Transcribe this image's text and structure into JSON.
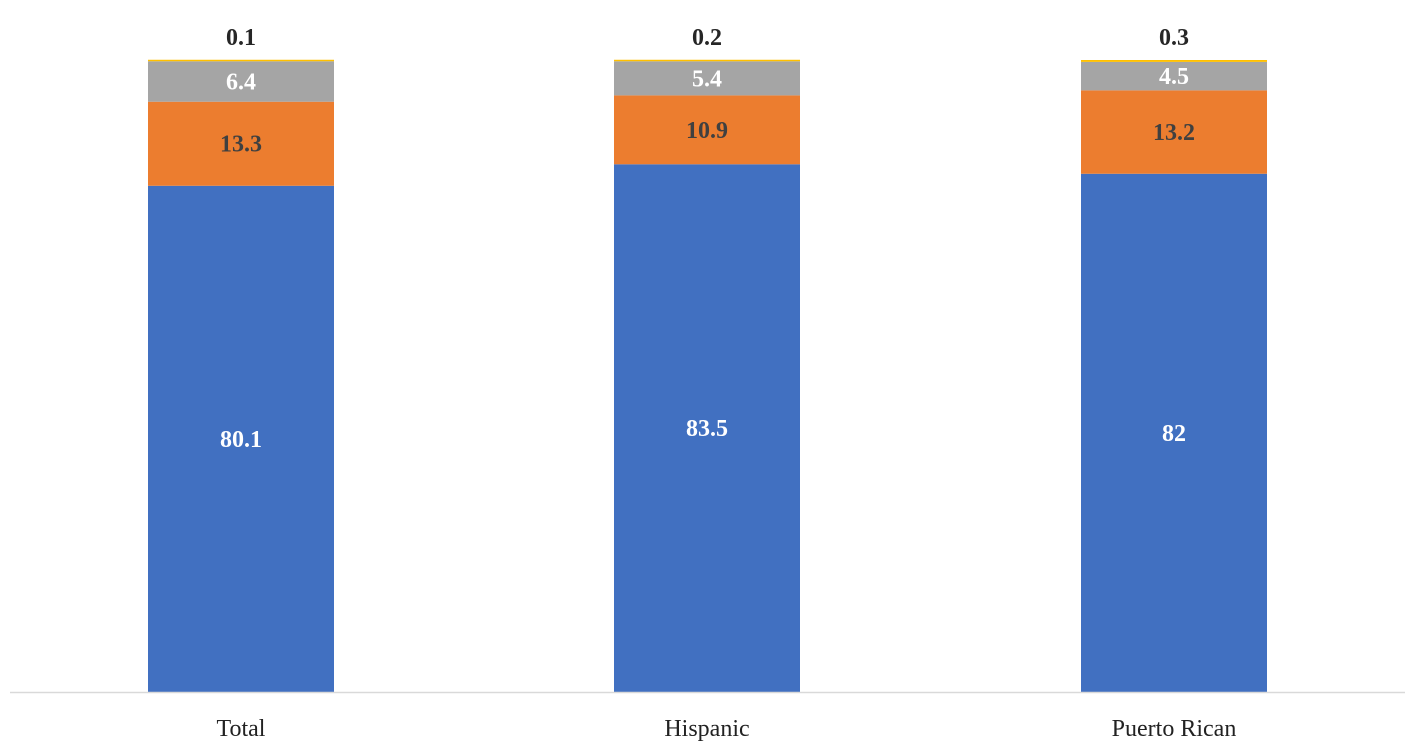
{
  "chart_data": {
    "type": "bar",
    "stacked": true,
    "categories": [
      "Total",
      "Hispanic",
      "Puerto Rican"
    ],
    "series": [
      {
        "values": [
          80.1,
          83.5,
          82
        ],
        "color": "#4170C1",
        "label_color": "#ffffff"
      },
      {
        "values": [
          13.3,
          10.9,
          13.2
        ],
        "color": "#EC7D2F",
        "label_color": "#404040"
      },
      {
        "values": [
          6.4,
          5.4,
          4.5
        ],
        "color": "#A5A5A5",
        "label_color": "#ffffff"
      },
      {
        "values": [
          0.1,
          0.2,
          0.3
        ],
        "color": "#FFC000",
        "label_color": "#262626",
        "label_outside": true
      }
    ],
    "data_labels": [
      [
        "80.1",
        "83.5",
        "82"
      ],
      [
        "13.3",
        "10.9",
        "13.2"
      ],
      [
        "6.4",
        "5.4",
        "4.5"
      ],
      [
        "0.1",
        "0.2",
        "0.3"
      ]
    ],
    "ylim": [
      0,
      100
    ],
    "axis_color": "#D9D9D9",
    "grid": false,
    "legend": "none"
  }
}
